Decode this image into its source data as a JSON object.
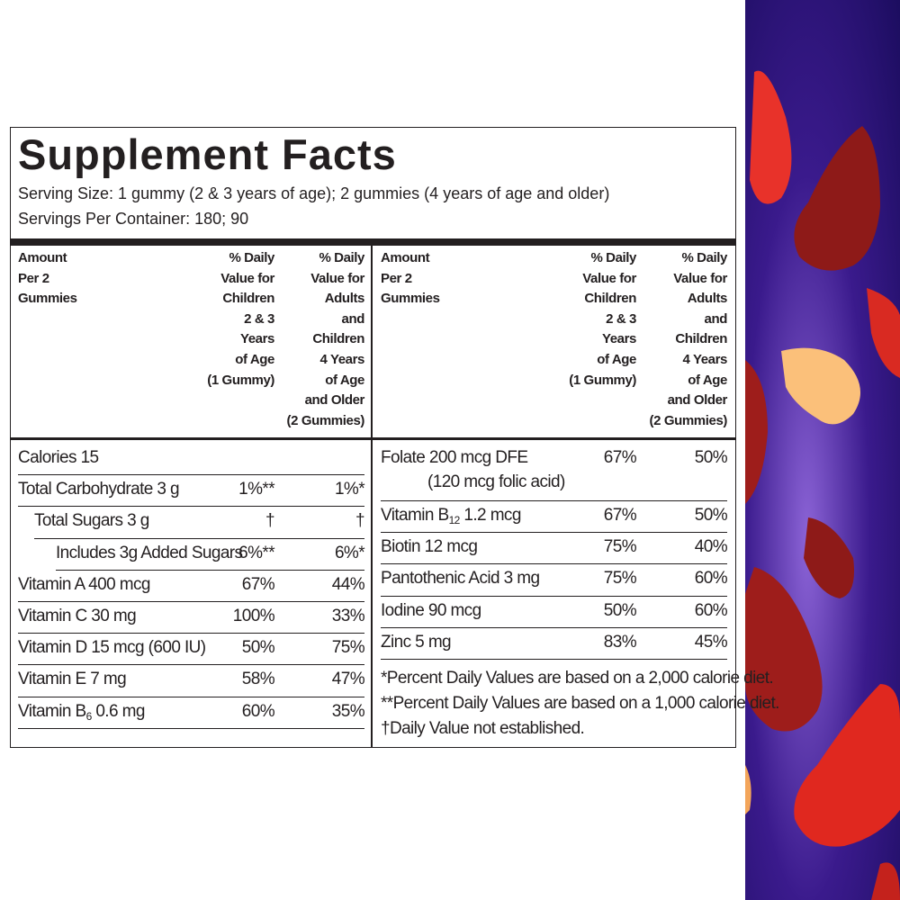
{
  "title": "Supplement Facts",
  "serving_size": "Serving Size:  1 gummy (2 & 3 years of age); 2 gummies (4 years of age and older)",
  "servings_per_container": "Servings Per Container: 180; 90",
  "column_headers": {
    "amount": [
      "Amount",
      "Per 2",
      "Gummies"
    ],
    "children": [
      "% Daily",
      "Value for",
      "Children",
      "2 & 3",
      "Years",
      "of Age",
      "(1 Gummy)"
    ],
    "adults": [
      "% Daily",
      "Value for",
      "Adults",
      "and",
      "Children",
      "4 Years",
      "of Age",
      "and Older",
      "(2 Gummies)"
    ]
  },
  "left_rows": [
    {
      "label": "Calories 15",
      "indent": 0
    },
    {
      "label": "Total Carbohydrate 3 g",
      "children": "1%**",
      "adults": "1%*",
      "indent": 0
    },
    {
      "label": "Total Sugars 3 g",
      "children": "†",
      "adults": "†",
      "indent": 1
    },
    {
      "label": "Includes 3g Added Sugars",
      "children": "6%**",
      "adults": "6%*",
      "indent": 2
    },
    {
      "label": "Vitamin A 400 mcg",
      "children": "67%",
      "adults": "44%",
      "indent": 0
    },
    {
      "label": "Vitamin C 30 mg",
      "children": "100%",
      "adults": "33%",
      "indent": 0
    },
    {
      "label": "Vitamin D 15 mcg (600 IU)",
      "children": "50%",
      "adults": "75%",
      "indent": 0
    },
    {
      "label": "Vitamin E 7 mg",
      "children": "58%",
      "adults": "47%",
      "indent": 0
    },
    {
      "label": "Vitamin B",
      "label_sub": "6",
      "label_rest": " 0.6 mg",
      "children": "60%",
      "adults": "35%",
      "indent": 0
    }
  ],
  "right_rows": [
    {
      "label": "Folate 200 mcg DFE",
      "label_line2": "(120 mcg folic acid)",
      "children": "67%",
      "adults": "50%",
      "indent": 0
    },
    {
      "label": "Vitamin B",
      "label_sub": "12",
      "label_rest": " 1.2 mcg",
      "children": "67%",
      "adults": "50%",
      "indent": 0
    },
    {
      "label": "Biotin 12 mcg",
      "children": "75%",
      "adults": "40%",
      "indent": 0
    },
    {
      "label": "Pantothenic Acid 3 mg",
      "children": "75%",
      "adults": "60%",
      "indent": 0
    },
    {
      "label": "Iodine 90 mcg",
      "children": "50%",
      "adults": "60%",
      "indent": 0
    },
    {
      "label": "Zinc 5 mg",
      "children": "83%",
      "adults": "45%",
      "indent": 0
    }
  ],
  "footnotes": [
    "*Percent Daily Values are based on a 2,000 calorie diet.",
    "**Percent Daily Values are based on a 1,000 calorie diet.",
    "†Daily Value not established."
  ]
}
